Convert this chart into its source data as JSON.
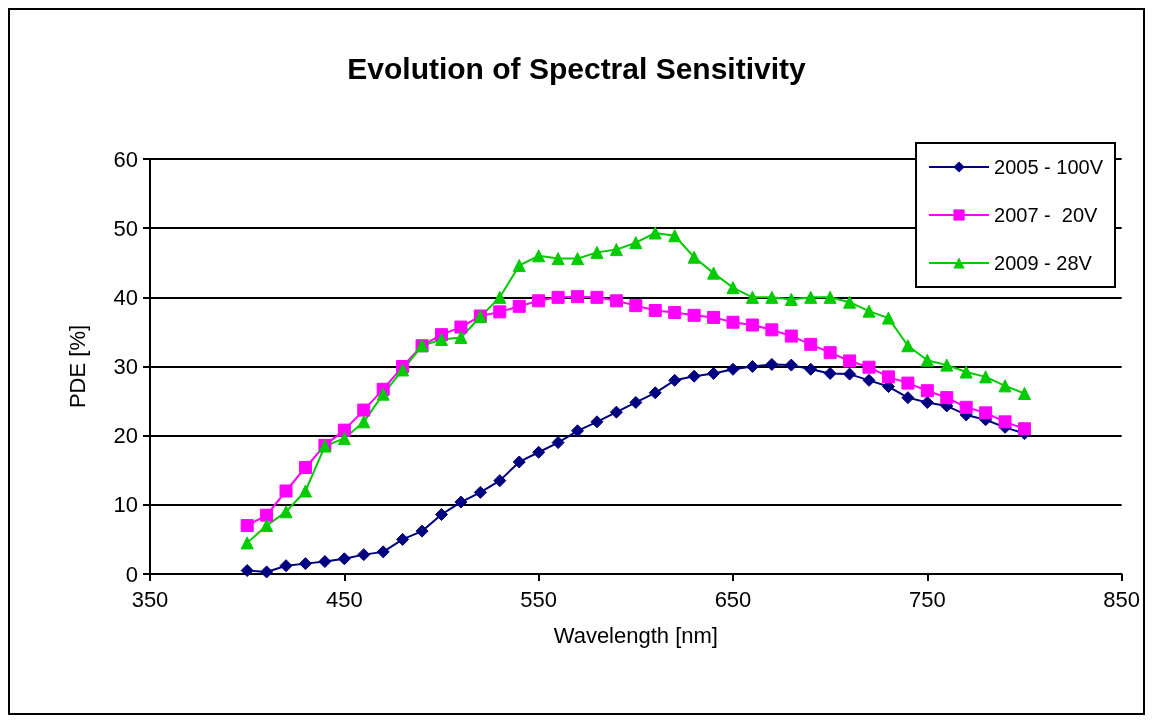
{
  "chart_data": {
    "type": "line",
    "title": "Evolution of Spectral Sensitivity",
    "xlabel": "Wavelength [nm]",
    "ylabel": "PDE [%]",
    "x": [
      400,
      410,
      420,
      430,
      440,
      450,
      460,
      470,
      480,
      490,
      500,
      510,
      520,
      530,
      540,
      550,
      560,
      570,
      580,
      590,
      600,
      610,
      620,
      630,
      640,
      650,
      660,
      670,
      680,
      690,
      700,
      710,
      720,
      730,
      740,
      750,
      760,
      770,
      780,
      790,
      800
    ],
    "series": [
      {
        "name": "2005 - 100V",
        "color": "#000080",
        "marker": "diamond",
        "values": [
          0.5,
          0.3,
          1.2,
          1.5,
          1.8,
          2.2,
          2.8,
          3.2,
          5,
          6.2,
          8.6,
          10.4,
          11.8,
          13.5,
          16.2,
          17.6,
          19,
          20.7,
          22,
          23.4,
          24.8,
          26.2,
          28,
          28.6,
          29,
          29.6,
          30,
          30.3,
          30.2,
          29.6,
          29,
          28.9,
          28,
          27.1,
          25.5,
          24.8,
          24.3,
          23,
          22.3,
          21.2,
          20.3
        ]
      },
      {
        "name": "2007 -  20V",
        "color": "#ff00ff",
        "marker": "square",
        "values": [
          7,
          8.5,
          12,
          15.4,
          18.6,
          20.8,
          23.7,
          26.7,
          30,
          33,
          34.6,
          35.7,
          37.3,
          37.9,
          38.7,
          39.5,
          40,
          40.1,
          40,
          39.5,
          38.8,
          38.1,
          37.8,
          37.4,
          37.1,
          36.4,
          36,
          35.3,
          34.4,
          33.2,
          32,
          30.8,
          29.9,
          28.5,
          27.6,
          26.5,
          25.5,
          24.1,
          23.3,
          22,
          21
        ]
      },
      {
        "name": "2009 - 28V",
        "color": "#00cc00",
        "marker": "triangle",
        "values": [
          4.5,
          7,
          9,
          12,
          18.5,
          19.6,
          22,
          26,
          29.5,
          33,
          33.9,
          34.2,
          37.2,
          40,
          44.6,
          46,
          45.6,
          45.6,
          46.5,
          46.9,
          47.9,
          49.3,
          48.9,
          45.8,
          43.5,
          41.4,
          40,
          40,
          39.7,
          40,
          40,
          39.3,
          38,
          37,
          33,
          30.9,
          30.2,
          29.2,
          28.5,
          27.2,
          26.1
        ]
      }
    ],
    "xlim": [
      350,
      850
    ],
    "xticks": [
      350,
      450,
      550,
      650,
      750,
      850
    ],
    "ylim": [
      0,
      60
    ],
    "yticks": [
      0,
      10,
      20,
      30,
      40,
      50,
      60
    ],
    "grid": "y",
    "legend": "top right",
    "line_style": "solid"
  }
}
